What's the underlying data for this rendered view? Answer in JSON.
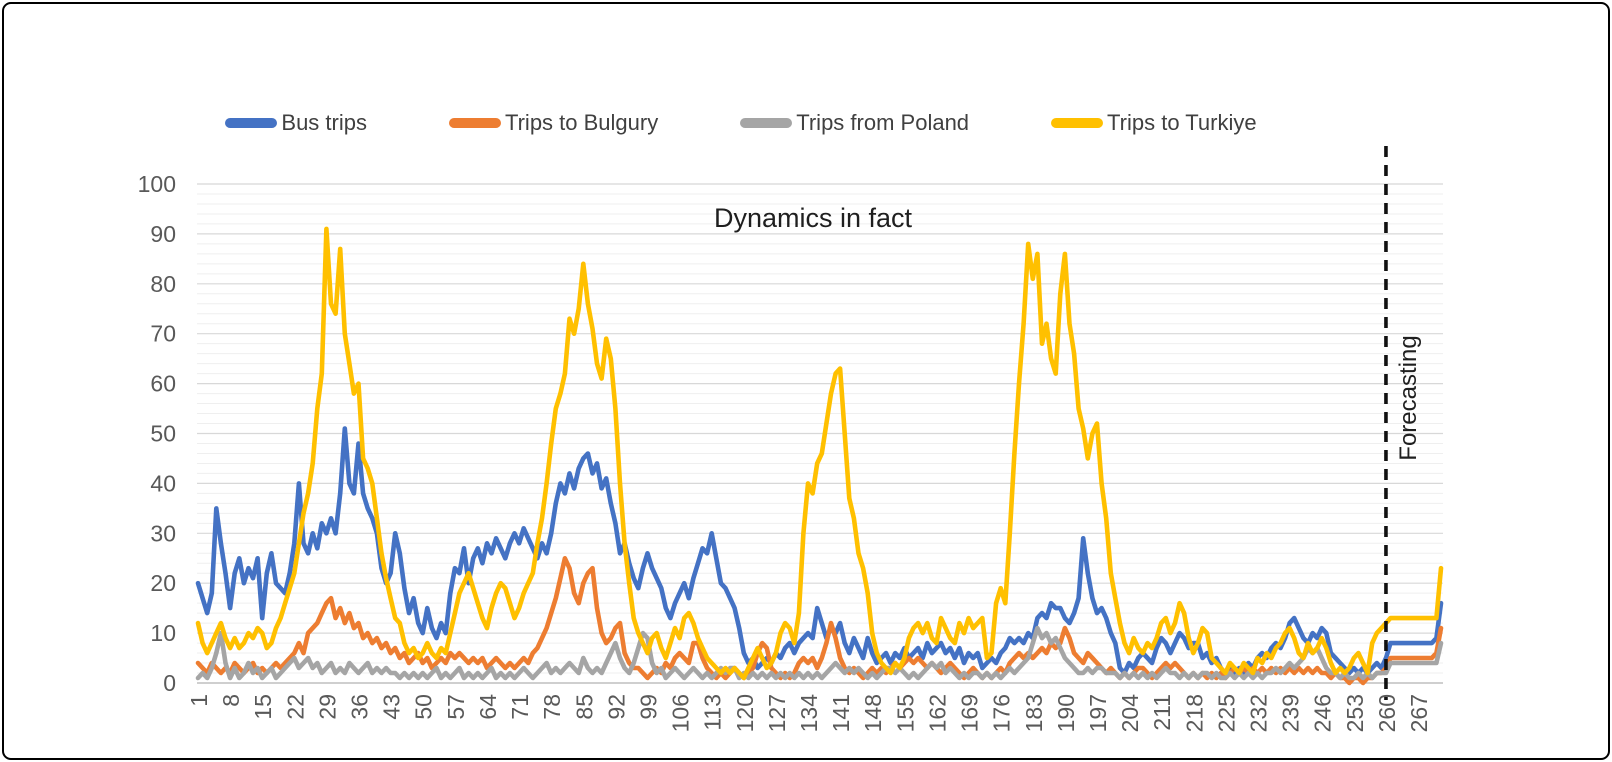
{
  "annotations": {
    "title": "Dynamics in fact",
    "forecast_label": "Forecasting"
  },
  "legend": {
    "items": [
      {
        "label": "Bus trips",
        "color": "#4472C4"
      },
      {
        "label": "Trips to Bulgury",
        "color": "#ED7D31"
      },
      {
        "label": "Trips from Poland",
        "color": "#A5A5A5"
      },
      {
        "label": "Trips to Turkiye",
        "color": "#FFC000"
      }
    ]
  },
  "chart_data": {
    "type": "line",
    "title": "Dynamics in fact",
    "xlabel": "",
    "ylabel": "",
    "x_start": 1,
    "x_count": 272,
    "ylim": [
      0,
      100
    ],
    "y_ticks": [
      0,
      10,
      20,
      30,
      40,
      50,
      60,
      70,
      80,
      90,
      100
    ],
    "x_ticks": [
      1,
      8,
      15,
      22,
      29,
      36,
      43,
      50,
      57,
      64,
      71,
      78,
      85,
      92,
      99,
      106,
      113,
      120,
      127,
      134,
      141,
      148,
      155,
      162,
      169,
      176,
      183,
      190,
      197,
      204,
      211,
      218,
      225,
      232,
      239,
      246,
      253,
      260,
      267
    ],
    "grid": {
      "major_step": 10,
      "minor_step": 2,
      "major_color": "#D8D8D8",
      "minor_color": "#EFEFEF"
    },
    "axis_color": "#BFBFBF",
    "forecast_boundary_x": 260,
    "legend_position": "top",
    "series": [
      {
        "name": "Bus trips",
        "color": "#4472C4",
        "values": [
          20,
          17,
          14,
          18,
          35,
          28,
          22,
          15,
          22,
          25,
          20,
          23,
          21,
          25,
          13,
          22,
          26,
          20,
          19,
          18,
          22,
          28,
          40,
          28,
          26,
          30,
          27,
          32,
          30,
          33,
          30,
          38,
          51,
          40,
          38,
          48,
          38,
          35,
          33,
          30,
          23,
          20,
          22,
          30,
          26,
          19,
          14,
          17,
          12,
          10,
          15,
          11,
          9,
          12,
          10,
          18,
          23,
          22,
          27,
          20,
          25,
          27,
          24,
          28,
          26,
          29,
          27,
          25,
          28,
          30,
          28,
          31,
          29,
          27,
          25,
          28,
          26,
          30,
          36,
          40,
          38,
          42,
          39,
          43,
          45,
          46,
          42,
          44,
          39,
          41,
          36,
          32,
          26,
          28,
          24,
          21,
          19,
          23,
          26,
          23,
          21,
          19,
          15,
          13,
          16,
          18,
          20,
          17,
          21,
          24,
          27,
          26,
          30,
          25,
          20,
          19,
          17,
          15,
          11,
          6,
          4,
          5,
          3,
          4,
          5,
          4,
          6,
          5,
          7,
          8,
          6,
          8,
          9,
          10,
          9,
          15,
          12,
          9,
          11,
          10,
          12,
          8,
          6,
          9,
          7,
          5,
          9,
          6,
          4,
          5,
          6,
          4,
          6,
          5,
          7,
          5,
          6,
          7,
          5,
          8,
          6,
          7,
          8,
          6,
          7,
          5,
          7,
          4,
          6,
          5,
          6,
          3,
          4,
          5,
          4,
          6,
          7,
          9,
          8,
          9,
          8,
          10,
          9,
          13,
          14,
          13,
          16,
          15,
          15,
          13,
          12,
          14,
          17,
          29,
          22,
          17,
          14,
          15,
          13,
          10,
          8,
          3,
          2,
          4,
          3,
          5,
          6,
          5,
          4,
          7,
          9,
          8,
          6,
          8,
          10,
          9,
          7,
          8,
          8,
          5,
          6,
          4,
          5,
          3,
          2,
          3,
          2,
          3,
          2,
          4,
          3,
          5,
          6,
          5,
          7,
          8,
          7,
          9,
          12,
          13,
          11,
          9,
          8,
          10,
          9,
          11,
          10,
          6,
          5,
          4,
          3,
          2,
          3,
          2,
          3,
          2,
          3,
          4,
          3,
          5,
          8,
          8,
          8,
          8,
          8,
          8,
          8,
          8,
          8,
          8,
          9,
          16
        ]
      },
      {
        "name": "Trips to Bulgury",
        "color": "#ED7D31",
        "values": [
          4,
          3,
          2,
          4,
          3,
          2,
          3,
          2,
          4,
          3,
          2,
          3,
          4,
          2,
          3,
          2,
          3,
          4,
          3,
          4,
          5,
          6,
          8,
          6,
          10,
          11,
          12,
          14,
          16,
          17,
          13,
          15,
          12,
          14,
          11,
          12,
          9,
          10,
          8,
          9,
          7,
          8,
          6,
          7,
          5,
          6,
          4,
          5,
          6,
          4,
          5,
          3,
          4,
          5,
          4,
          6,
          5,
          6,
          5,
          4,
          5,
          4,
          5,
          3,
          4,
          5,
          4,
          3,
          4,
          3,
          4,
          5,
          4,
          6,
          7,
          9,
          11,
          14,
          17,
          21,
          25,
          23,
          18,
          16,
          20,
          22,
          23,
          15,
          10,
          8,
          9,
          11,
          12,
          6,
          4,
          3,
          3,
          2,
          1,
          2,
          3,
          2,
          4,
          3,
          5,
          6,
          5,
          4,
          8,
          8,
          5,
          3,
          2,
          1,
          2,
          1,
          2,
          3,
          2,
          1,
          2,
          3,
          6,
          8,
          7,
          3,
          2,
          1,
          2,
          1,
          2,
          4,
          5,
          4,
          5,
          3,
          5,
          8,
          12,
          9,
          5,
          3,
          2,
          3,
          2,
          1,
          2,
          3,
          2,
          3,
          2,
          3,
          4,
          3,
          4,
          5,
          4,
          5,
          4,
          3,
          4,
          3,
          2,
          3,
          4,
          3,
          2,
          1,
          2,
          3,
          2,
          1,
          2,
          1,
          2,
          3,
          2,
          4,
          5,
          6,
          5,
          6,
          5,
          6,
          7,
          6,
          8,
          7,
          8,
          11,
          9,
          6,
          5,
          4,
          6,
          5,
          4,
          3,
          2,
          3,
          2,
          1,
          2,
          1,
          2,
          3,
          3,
          2,
          1,
          2,
          3,
          4,
          3,
          4,
          3,
          2,
          1,
          2,
          1,
          2,
          1,
          2,
          1,
          2,
          1,
          2,
          3,
          2,
          3,
          2,
          3,
          2,
          3,
          2,
          3,
          2,
          3,
          2,
          3,
          2,
          3,
          2,
          3,
          2,
          3,
          2,
          2,
          1,
          2,
          1,
          1,
          0,
          1,
          1,
          0,
          1,
          1,
          2,
          2,
          3,
          5,
          5,
          5,
          5,
          5,
          5,
          5,
          5,
          5,
          5,
          6,
          11
        ]
      },
      {
        "name": "Trips from Poland",
        "color": "#A5A5A5",
        "values": [
          1,
          2,
          1,
          3,
          6,
          10,
          4,
          1,
          3,
          1,
          2,
          4,
          2,
          3,
          1,
          2,
          3,
          1,
          2,
          3,
          4,
          5,
          3,
          4,
          5,
          3,
          4,
          2,
          3,
          4,
          2,
          3,
          2,
          4,
          3,
          2,
          3,
          4,
          2,
          3,
          2,
          3,
          2,
          2,
          1,
          2,
          1,
          2,
          1,
          2,
          1,
          2,
          3,
          1,
          2,
          1,
          2,
          3,
          1,
          2,
          1,
          2,
          1,
          2,
          3,
          1,
          2,
          1,
          2,
          1,
          2,
          3,
          2,
          1,
          2,
          3,
          4,
          2,
          3,
          2,
          3,
          4,
          3,
          2,
          5,
          3,
          2,
          3,
          2,
          4,
          6,
          8,
          5,
          3,
          2,
          4,
          7,
          10,
          9,
          4,
          2,
          3,
          1,
          2,
          3,
          2,
          1,
          2,
          3,
          2,
          1,
          2,
          1,
          2,
          3,
          2,
          3,
          3,
          1,
          2,
          1,
          2,
          1,
          2,
          1,
          2,
          1,
          2,
          1,
          2,
          1,
          2,
          1,
          2,
          1,
          2,
          1,
          2,
          3,
          4,
          3,
          2,
          3,
          2,
          3,
          2,
          1,
          2,
          1,
          2,
          3,
          3,
          2,
          3,
          2,
          1,
          2,
          1,
          2,
          3,
          4,
          3,
          4,
          2,
          3,
          2,
          1,
          2,
          1,
          2,
          2,
          1,
          2,
          1,
          2,
          1,
          2,
          3,
          2,
          3,
          4,
          5,
          8,
          11,
          9,
          10,
          8,
          9,
          7,
          5,
          4,
          3,
          2,
          2,
          3,
          2,
          3,
          3,
          2,
          2,
          2,
          1,
          2,
          1,
          2,
          1,
          2,
          1,
          2,
          1,
          2,
          3,
          2,
          2,
          1,
          2,
          1,
          2,
          1,
          2,
          2,
          1,
          2,
          1,
          1,
          2,
          1,
          2,
          1,
          2,
          1,
          2,
          1,
          2,
          2,
          3,
          2,
          3,
          4,
          3,
          4,
          5,
          7,
          6,
          7,
          5,
          3,
          2,
          2,
          1,
          2,
          1,
          1,
          2,
          1,
          2,
          1,
          2,
          2,
          2,
          4,
          4,
          4,
          4,
          4,
          4,
          4,
          4,
          4,
          4,
          4,
          8
        ]
      },
      {
        "name": "Trips to Turkiye",
        "color": "#FFC000",
        "values": [
          12,
          8,
          6,
          8,
          10,
          12,
          9,
          7,
          9,
          7,
          8,
          10,
          9,
          11,
          10,
          7,
          8,
          11,
          13,
          16,
          19,
          22,
          28,
          34,
          38,
          44,
          55,
          62,
          91,
          76,
          74,
          87,
          70,
          64,
          58,
          60,
          45,
          43,
          40,
          33,
          26,
          21,
          17,
          13,
          12,
          8,
          6,
          7,
          5,
          6,
          8,
          6,
          5,
          7,
          6,
          10,
          14,
          18,
          20,
          22,
          19,
          16,
          13,
          11,
          15,
          18,
          20,
          19,
          16,
          13,
          15,
          18,
          20,
          22,
          28,
          33,
          40,
          48,
          55,
          58,
          62,
          73,
          70,
          75,
          84,
          76,
          71,
          64,
          61,
          69,
          65,
          55,
          40,
          28,
          20,
          13,
          10,
          8,
          6,
          9,
          10,
          7,
          5,
          8,
          11,
          9,
          13,
          14,
          12,
          9,
          7,
          5,
          4,
          3,
          2,
          3,
          2,
          3,
          2,
          1,
          3,
          5,
          7,
          5,
          3,
          4,
          6,
          10,
          12,
          11,
          8,
          14,
          30,
          40,
          38,
          44,
          46,
          52,
          58,
          62,
          63,
          50,
          37,
          33,
          26,
          23,
          18,
          10,
          6,
          4,
          3,
          2,
          4,
          3,
          5,
          9,
          11,
          12,
          10,
          12,
          9,
          8,
          13,
          11,
          9,
          8,
          12,
          10,
          13,
          11,
          12,
          13,
          5,
          6,
          16,
          19,
          16,
          30,
          46,
          60,
          72,
          88,
          81,
          86,
          68,
          72,
          65,
          62,
          78,
          86,
          72,
          66,
          55,
          51,
          45,
          50,
          52,
          40,
          33,
          22,
          17,
          12,
          8,
          6,
          9,
          7,
          6,
          8,
          7,
          9,
          12,
          13,
          10,
          12,
          16,
          14,
          9,
          6,
          8,
          11,
          10,
          5,
          4,
          3,
          2,
          4,
          3,
          2,
          4,
          3,
          2,
          5,
          4,
          6,
          5,
          7,
          8,
          10,
          11,
          9,
          6,
          5,
          8,
          6,
          7,
          9,
          7,
          4,
          2,
          3,
          2,
          3,
          5,
          6,
          4,
          2,
          8,
          10,
          11,
          12,
          13,
          13,
          13,
          13,
          13,
          13,
          13,
          13,
          13,
          13,
          13,
          23
        ]
      }
    ]
  }
}
